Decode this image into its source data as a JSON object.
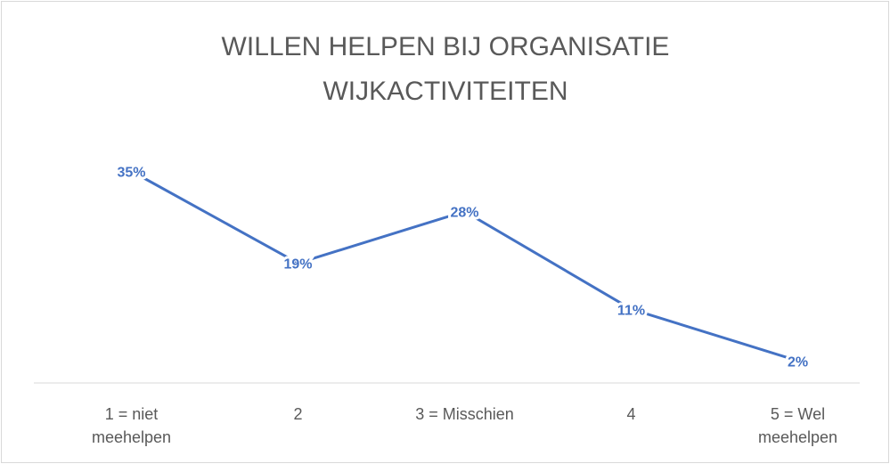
{
  "chart_data": {
    "type": "line",
    "title": "WILLEN HELPEN BIJ ORGANISATIE WIJKACTIVITEITEN",
    "categories": [
      "1 = niet meehelpen",
      "2",
      "3 = Misschien",
      "4",
      "5 = Wel meehelpen"
    ],
    "values": [
      35,
      19,
      28,
      11,
      2
    ],
    "value_labels": [
      "35%",
      "19%",
      "28%",
      "11%",
      "2%"
    ],
    "color": "#4472c4"
  }
}
